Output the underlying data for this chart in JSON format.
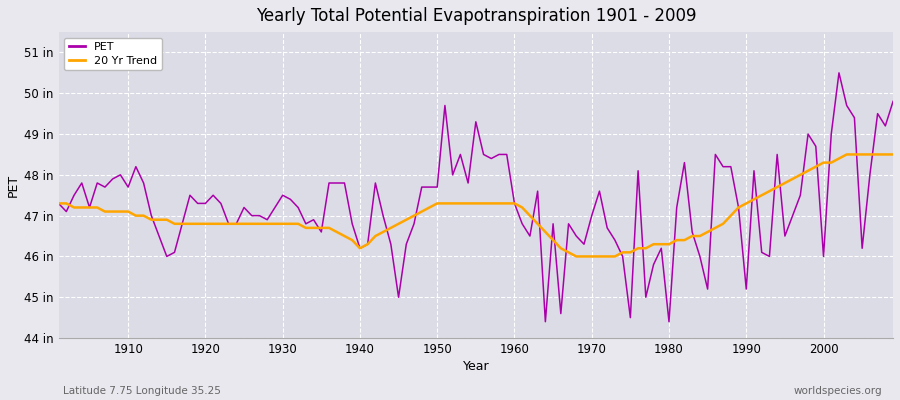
{
  "title": "Yearly Total Potential Evapotranspiration 1901 - 2009",
  "xlabel": "Year",
  "ylabel": "PET",
  "footnote_left": "Latitude 7.75 Longitude 35.25",
  "footnote_right": "worldspecies.org",
  "bg_color": "#e8e8ee",
  "plot_bg_color": "#dcdce6",
  "pet_color": "#aa00aa",
  "trend_color": "#ffa500",
  "ylim": [
    44,
    51.5
  ],
  "yticks": [
    44,
    45,
    46,
    47,
    48,
    49,
    50,
    51
  ],
  "ytick_labels": [
    "44 in",
    "45 in",
    "46 in",
    "47 in",
    "48 in",
    "49 in",
    "50 in",
    "51 in"
  ],
  "xticks": [
    1910,
    1920,
    1930,
    1940,
    1950,
    1960,
    1970,
    1980,
    1990,
    2000
  ],
  "xlim": [
    1901,
    2009
  ],
  "years": [
    1901,
    1902,
    1903,
    1904,
    1905,
    1906,
    1907,
    1908,
    1909,
    1910,
    1911,
    1912,
    1913,
    1914,
    1915,
    1916,
    1917,
    1918,
    1919,
    1920,
    1921,
    1922,
    1923,
    1924,
    1925,
    1926,
    1927,
    1928,
    1929,
    1930,
    1931,
    1932,
    1933,
    1934,
    1935,
    1936,
    1937,
    1938,
    1939,
    1940,
    1941,
    1942,
    1943,
    1944,
    1945,
    1946,
    1947,
    1948,
    1949,
    1950,
    1951,
    1952,
    1953,
    1954,
    1955,
    1956,
    1957,
    1958,
    1959,
    1960,
    1961,
    1962,
    1963,
    1964,
    1965,
    1966,
    1967,
    1968,
    1969,
    1970,
    1971,
    1972,
    1973,
    1974,
    1975,
    1976,
    1977,
    1978,
    1979,
    1980,
    1981,
    1982,
    1983,
    1984,
    1985,
    1986,
    1987,
    1988,
    1989,
    1990,
    1991,
    1992,
    1993,
    1994,
    1995,
    1996,
    1997,
    1998,
    1999,
    2000,
    2001,
    2002,
    2003,
    2004,
    2005,
    2006,
    2007,
    2008,
    2009
  ],
  "pet": [
    47.3,
    47.1,
    47.5,
    47.8,
    47.2,
    47.8,
    47.7,
    47.9,
    48.0,
    47.7,
    48.2,
    47.8,
    47.0,
    46.5,
    46.0,
    46.1,
    46.8,
    47.5,
    47.3,
    47.3,
    47.5,
    47.3,
    46.8,
    46.8,
    47.2,
    47.0,
    47.0,
    46.9,
    47.2,
    47.5,
    47.4,
    47.2,
    46.8,
    46.9,
    46.6,
    47.8,
    47.8,
    47.8,
    46.8,
    46.2,
    46.3,
    47.8,
    47.0,
    46.3,
    45.0,
    46.3,
    46.8,
    47.7,
    47.7,
    47.7,
    49.7,
    48.0,
    48.5,
    47.8,
    49.3,
    48.5,
    48.4,
    48.5,
    48.5,
    47.3,
    46.8,
    46.5,
    47.6,
    44.4,
    46.8,
    44.6,
    46.8,
    46.5,
    46.3,
    47.0,
    47.6,
    46.7,
    46.4,
    46.0,
    44.5,
    48.1,
    45.0,
    45.8,
    46.2,
    44.4,
    47.2,
    48.3,
    46.6,
    46.0,
    45.2,
    48.5,
    48.2,
    48.2,
    47.2,
    45.2,
    48.1,
    46.1,
    46.0,
    48.5,
    46.5,
    47.0,
    47.5,
    49.0,
    48.7,
    46.0,
    49.0,
    50.5,
    49.7,
    49.4,
    46.2,
    48.0,
    49.5,
    49.2,
    49.8
  ],
  "trend_years": [
    1901,
    1902,
    1903,
    1904,
    1905,
    1906,
    1907,
    1908,
    1909,
    1910,
    1911,
    1912,
    1913,
    1914,
    1915,
    1916,
    1917,
    1918,
    1919,
    1920,
    1921,
    1922,
    1923,
    1924,
    1925,
    1926,
    1927,
    1928,
    1929,
    1930,
    1931,
    1932,
    1933,
    1934,
    1935,
    1936,
    1937,
    1938,
    1939,
    1940,
    1941,
    1942,
    1943,
    1944,
    1945,
    1946,
    1947,
    1948,
    1949,
    1950,
    1951,
    1952,
    1953,
    1954,
    1955,
    1956,
    1957,
    1958,
    1959,
    1960,
    1961,
    1962,
    1963,
    1964,
    1965,
    1966,
    1967,
    1968,
    1969,
    1970,
    1971,
    1972,
    1973,
    1974,
    1975,
    1976,
    1977,
    1978,
    1979,
    1980,
    1981,
    1982,
    1983,
    1984,
    1985,
    1986,
    1987,
    1988,
    1989,
    1990,
    1991,
    1992,
    1993,
    1994,
    1995,
    1996,
    1997,
    1998,
    1999,
    2000,
    2001,
    2002,
    2003,
    2004,
    2005,
    2006,
    2007,
    2008,
    2009
  ],
  "trend": [
    47.3,
    47.3,
    47.2,
    47.2,
    47.2,
    47.2,
    47.1,
    47.1,
    47.1,
    47.1,
    47.0,
    47.0,
    46.9,
    46.9,
    46.9,
    46.8,
    46.8,
    46.8,
    46.8,
    46.8,
    46.8,
    46.8,
    46.8,
    46.8,
    46.8,
    46.8,
    46.8,
    46.8,
    46.8,
    46.8,
    46.8,
    46.8,
    46.7,
    46.7,
    46.7,
    46.7,
    46.6,
    46.5,
    46.4,
    46.2,
    46.3,
    46.5,
    46.6,
    46.7,
    46.8,
    46.9,
    47.0,
    47.1,
    47.2,
    47.3,
    47.3,
    47.3,
    47.3,
    47.3,
    47.3,
    47.3,
    47.3,
    47.3,
    47.3,
    47.3,
    47.2,
    47.0,
    46.8,
    46.6,
    46.4,
    46.2,
    46.1,
    46.0,
    46.0,
    46.0,
    46.0,
    46.0,
    46.0,
    46.1,
    46.1,
    46.2,
    46.2,
    46.3,
    46.3,
    46.3,
    46.4,
    46.4,
    46.5,
    46.5,
    46.6,
    46.7,
    46.8,
    47.0,
    47.2,
    47.3,
    47.4,
    47.5,
    47.6,
    47.7,
    47.8,
    47.9,
    48.0,
    48.1,
    48.2,
    48.3,
    48.3,
    48.4,
    48.5,
    48.5,
    48.5,
    48.5,
    48.5,
    48.5,
    48.5
  ]
}
